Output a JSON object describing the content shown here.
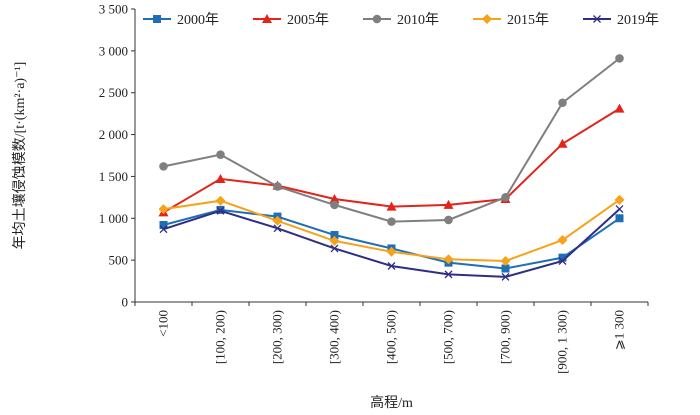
{
  "chart_data": {
    "type": "line",
    "xlabel": "高程/m",
    "ylabel": "年均土壤侵蚀模数/[t·(km²·a)⁻¹]",
    "categories": [
      "<100",
      "[100, 200)",
      "[200, 300)",
      "[300, 400)",
      "[400, 500)",
      "[500, 700)",
      "[700, 900)",
      "[900, 1 300)",
      "⩾1 300"
    ],
    "ylim": [
      0,
      3500
    ],
    "yticks": [
      0,
      500,
      1000,
      1500,
      2000,
      2500,
      3000,
      3500
    ],
    "ytick_labels": [
      "0",
      "500",
      "1 000",
      "1 500",
      "2 000",
      "2 500",
      "3 000",
      "3 500"
    ],
    "legend_position": "top",
    "grid": false,
    "series": [
      {
        "name": "2000年",
        "color": "#1f6fb4",
        "marker": "square",
        "values": [
          920,
          1100,
          1020,
          800,
          640,
          470,
          400,
          530,
          1000
        ]
      },
      {
        "name": "2005年",
        "color": "#e2241b",
        "marker": "triangle",
        "values": [
          1070,
          1470,
          1390,
          1230,
          1140,
          1160,
          1230,
          1890,
          2310
        ]
      },
      {
        "name": "2010年",
        "color": "#7f7f7f",
        "marker": "circle",
        "values": [
          1620,
          1760,
          1380,
          1160,
          960,
          980,
          1250,
          2380,
          2910
        ]
      },
      {
        "name": "2015年",
        "color": "#f6a21b",
        "marker": "diamond",
        "values": [
          1110,
          1210,
          970,
          730,
          600,
          510,
          490,
          740,
          1220
        ]
      },
      {
        "name": "2019年",
        "color": "#2e2f84",
        "marker": "x",
        "values": [
          870,
          1090,
          880,
          640,
          430,
          330,
          300,
          490,
          1110
        ]
      }
    ]
  }
}
